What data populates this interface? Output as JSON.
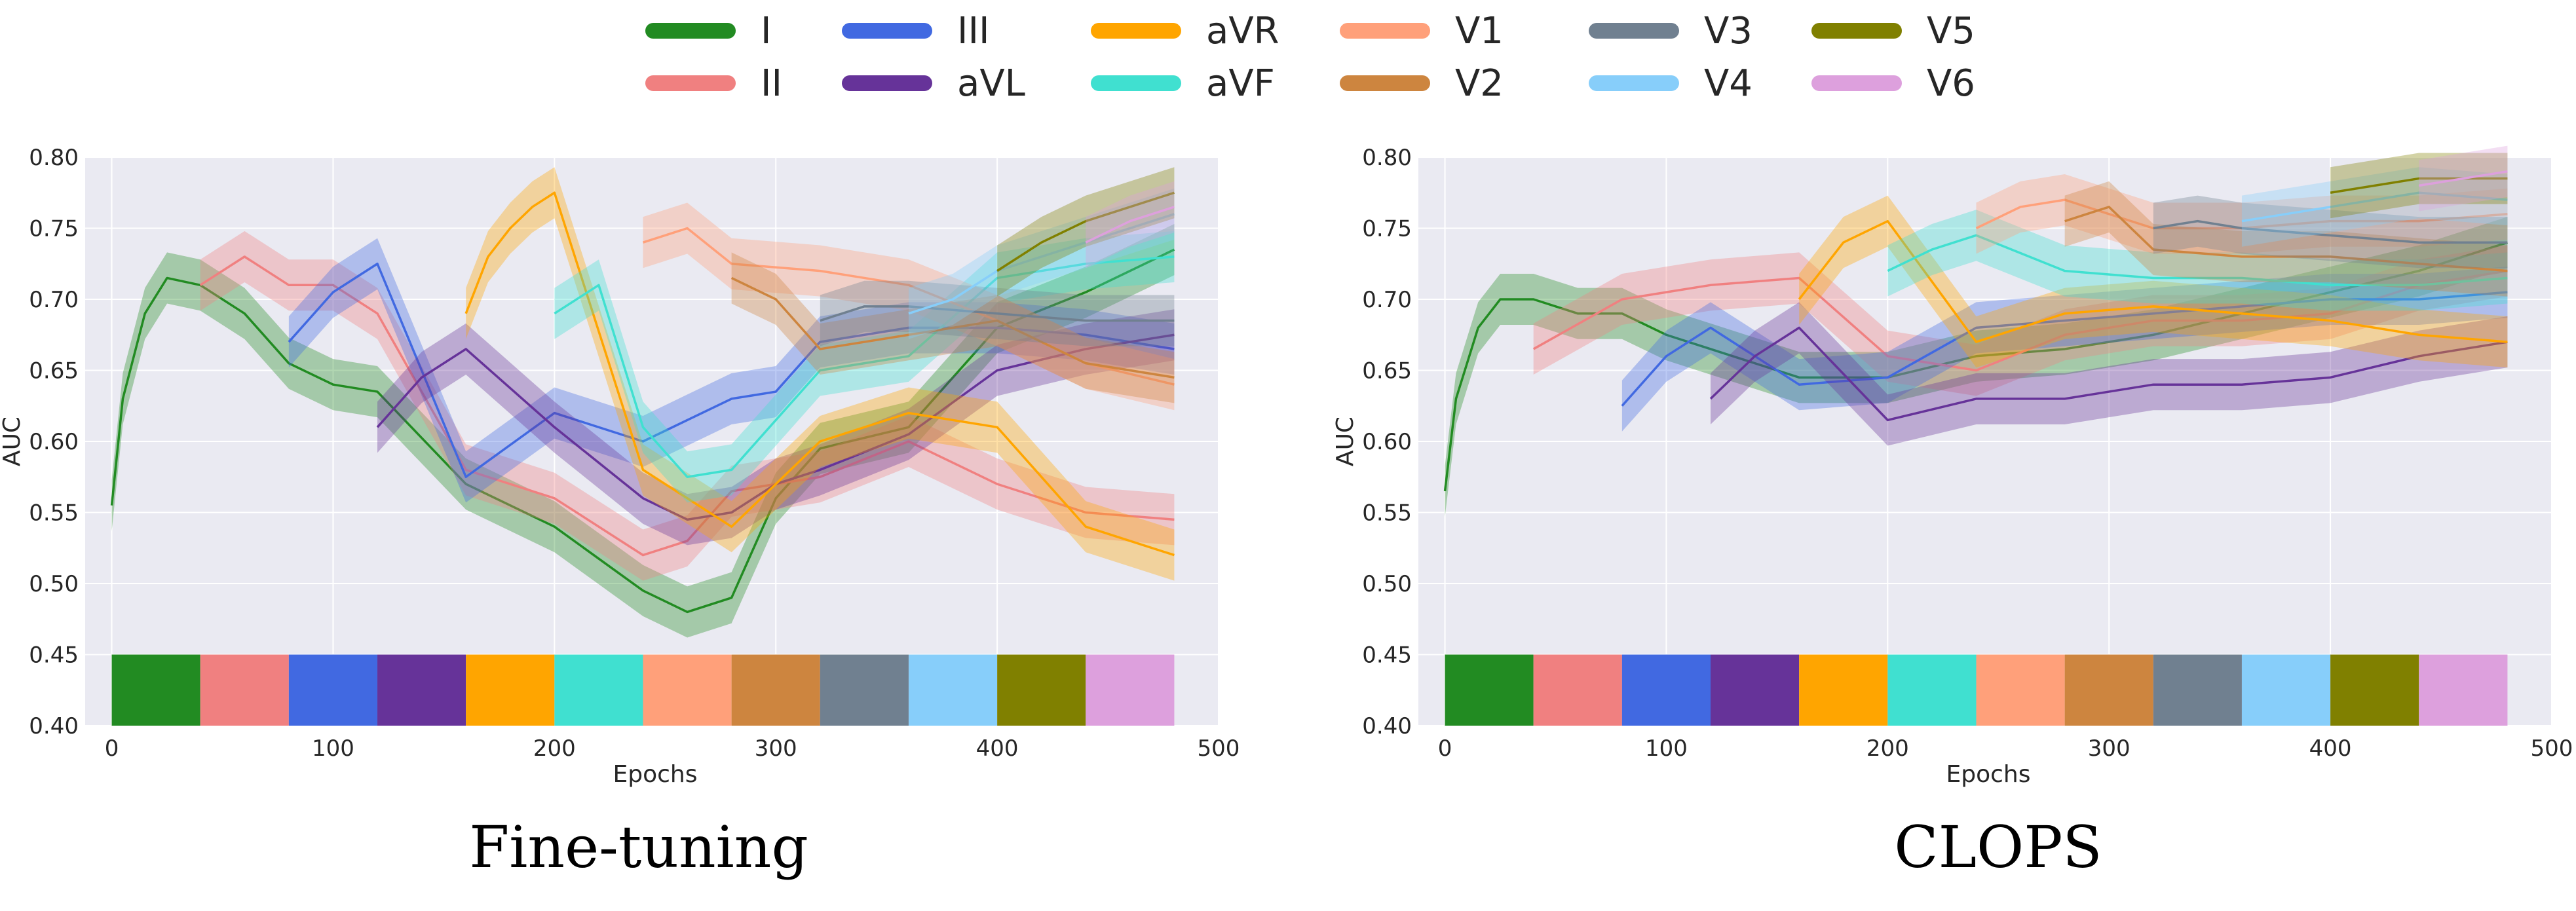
{
  "legend": [
    {
      "name": "I",
      "color": "#228b22"
    },
    {
      "name": "II",
      "color": "#f08080"
    },
    {
      "name": "III",
      "color": "#4169e1"
    },
    {
      "name": "aVL",
      "color": "#663399"
    },
    {
      "name": "aVR",
      "color": "#ffa500"
    },
    {
      "name": "aVF",
      "color": "#40e0d0"
    },
    {
      "name": "V1",
      "color": "#ffa07a"
    },
    {
      "name": "V2",
      "color": "#cd853f"
    },
    {
      "name": "V3",
      "color": "#708090"
    },
    {
      "name": "V4",
      "color": "#87cefa"
    },
    {
      "name": "V5",
      "color": "#808000"
    },
    {
      "name": "V6",
      "color": "#dda0dd"
    }
  ],
  "chart_data": [
    {
      "type": "line",
      "title": "Fine-tuning",
      "xlabel": "Epochs",
      "ylabel": "AUC",
      "xlim": [
        -12,
        500
      ],
      "ylim": [
        0.4,
        0.8
      ],
      "xticks": [
        0,
        100,
        200,
        300,
        400,
        500
      ],
      "yticks": [
        "0.40",
        "0.45",
        "0.50",
        "0.55",
        "0.60",
        "0.65",
        "0.70",
        "0.75",
        "0.80"
      ],
      "grid": true,
      "task_bar": {
        "y_range": [
          0.4,
          0.45
        ],
        "segment_epochs": 40
      },
      "series": [
        {
          "name": "I",
          "x": [
            0,
            5,
            15,
            25,
            40,
            60,
            80,
            100,
            120,
            160,
            200,
            240,
            260,
            280,
            300,
            320,
            360,
            400,
            440,
            480
          ],
          "y": [
            0.555,
            0.63,
            0.69,
            0.715,
            0.71,
            0.69,
            0.655,
            0.64,
            0.635,
            0.57,
            0.54,
            0.495,
            0.48,
            0.49,
            0.56,
            0.595,
            0.61,
            0.68,
            0.705,
            0.735
          ]
        },
        {
          "name": "II",
          "x": [
            40,
            60,
            80,
            100,
            120,
            160,
            200,
            240,
            260,
            280,
            300,
            320,
            360,
            400,
            440,
            480
          ],
          "y": [
            0.71,
            0.73,
            0.71,
            0.71,
            0.69,
            0.58,
            0.56,
            0.52,
            0.53,
            0.565,
            0.57,
            0.575,
            0.6,
            0.57,
            0.55,
            0.545
          ]
        },
        {
          "name": "III",
          "x": [
            80,
            100,
            120,
            160,
            200,
            240,
            260,
            280,
            300,
            320,
            360,
            400,
            440,
            480
          ],
          "y": [
            0.67,
            0.705,
            0.725,
            0.575,
            0.62,
            0.6,
            0.615,
            0.63,
            0.635,
            0.67,
            0.68,
            0.68,
            0.675,
            0.665
          ]
        },
        {
          "name": "aVL",
          "x": [
            120,
            140,
            160,
            200,
            240,
            260,
            280,
            300,
            320,
            360,
            400,
            440,
            480
          ],
          "y": [
            0.61,
            0.645,
            0.665,
            0.61,
            0.56,
            0.545,
            0.55,
            0.57,
            0.58,
            0.605,
            0.65,
            0.665,
            0.675
          ]
        },
        {
          "name": "aVR",
          "x": [
            160,
            170,
            180,
            190,
            200,
            240,
            280,
            320,
            360,
            400,
            440,
            480
          ],
          "y": [
            0.69,
            0.73,
            0.75,
            0.765,
            0.775,
            0.58,
            0.54,
            0.6,
            0.62,
            0.61,
            0.54,
            0.52
          ]
        },
        {
          "name": "aVF",
          "x": [
            200,
            220,
            240,
            260,
            280,
            320,
            360,
            400,
            440,
            480
          ],
          "y": [
            0.69,
            0.71,
            0.61,
            0.575,
            0.58,
            0.65,
            0.66,
            0.715,
            0.725,
            0.73
          ]
        },
        {
          "name": "V1",
          "x": [
            240,
            260,
            280,
            320,
            360,
            400,
            440,
            480
          ],
          "y": [
            0.74,
            0.75,
            0.725,
            0.72,
            0.71,
            0.685,
            0.655,
            0.64
          ]
        },
        {
          "name": "V2",
          "x": [
            280,
            300,
            320,
            360,
            400,
            440,
            480
          ],
          "y": [
            0.715,
            0.7,
            0.665,
            0.675,
            0.685,
            0.655,
            0.645
          ]
        },
        {
          "name": "V3",
          "x": [
            320,
            340,
            360,
            400,
            440,
            480
          ],
          "y": [
            0.685,
            0.695,
            0.695,
            0.69,
            0.685,
            0.685
          ]
        },
        {
          "name": "V4",
          "x": [
            360,
            380,
            400,
            440,
            480
          ],
          "y": [
            0.69,
            0.7,
            0.72,
            0.74,
            0.76
          ]
        },
        {
          "name": "V5",
          "x": [
            400,
            420,
            440,
            460,
            480
          ],
          "y": [
            0.72,
            0.74,
            0.755,
            0.765,
            0.775
          ]
        },
        {
          "name": "V6",
          "x": [
            440,
            460,
            480
          ],
          "y": [
            0.74,
            0.755,
            0.765
          ]
        }
      ]
    },
    {
      "type": "line",
      "title": "CLOPS",
      "xlabel": "Epochs",
      "ylabel": "AUC",
      "xlim": [
        -12,
        500
      ],
      "ylim": [
        0.4,
        0.8
      ],
      "xticks": [
        0,
        100,
        200,
        300,
        400,
        500
      ],
      "yticks": [
        "0.40",
        "0.45",
        "0.50",
        "0.55",
        "0.60",
        "0.65",
        "0.70",
        "0.75",
        "0.80"
      ],
      "grid": true,
      "task_bar": {
        "y_range": [
          0.4,
          0.45
        ],
        "segment_epochs": 40
      },
      "series": [
        {
          "name": "I",
          "x": [
            0,
            5,
            15,
            25,
            40,
            60,
            80,
            100,
            120,
            160,
            200,
            240,
            280,
            320,
            360,
            400,
            440,
            480
          ],
          "y": [
            0.565,
            0.63,
            0.68,
            0.7,
            0.7,
            0.69,
            0.69,
            0.675,
            0.665,
            0.645,
            0.645,
            0.66,
            0.665,
            0.675,
            0.69,
            0.705,
            0.72,
            0.74
          ]
        },
        {
          "name": "II",
          "x": [
            40,
            80,
            120,
            160,
            200,
            240,
            280,
            320,
            360,
            400,
            440,
            480
          ],
          "y": [
            0.665,
            0.7,
            0.71,
            0.715,
            0.66,
            0.65,
            0.675,
            0.685,
            0.685,
            0.69,
            0.71,
            0.72
          ]
        },
        {
          "name": "III",
          "x": [
            80,
            100,
            120,
            160,
            200,
            240,
            280,
            320,
            360,
            400,
            440,
            480
          ],
          "y": [
            0.625,
            0.66,
            0.68,
            0.64,
            0.645,
            0.68,
            0.685,
            0.69,
            0.695,
            0.7,
            0.7,
            0.705
          ]
        },
        {
          "name": "aVL",
          "x": [
            120,
            140,
            160,
            200,
            240,
            280,
            320,
            360,
            400,
            440,
            480
          ],
          "y": [
            0.63,
            0.66,
            0.68,
            0.615,
            0.63,
            0.63,
            0.64,
            0.64,
            0.645,
            0.66,
            0.67
          ]
        },
        {
          "name": "aVR",
          "x": [
            160,
            170,
            180,
            200,
            240,
            280,
            320,
            360,
            400,
            440,
            480
          ],
          "y": [
            0.7,
            0.72,
            0.74,
            0.755,
            0.67,
            0.69,
            0.695,
            0.69,
            0.685,
            0.675,
            0.67
          ]
        },
        {
          "name": "aVF",
          "x": [
            200,
            220,
            240,
            280,
            320,
            360,
            400,
            440,
            480
          ],
          "y": [
            0.72,
            0.735,
            0.745,
            0.72,
            0.715,
            0.715,
            0.71,
            0.71,
            0.715
          ]
        },
        {
          "name": "V1",
          "x": [
            240,
            260,
            280,
            320,
            360,
            400,
            440,
            480
          ],
          "y": [
            0.75,
            0.765,
            0.77,
            0.75,
            0.75,
            0.755,
            0.755,
            0.76
          ]
        },
        {
          "name": "V2",
          "x": [
            280,
            300,
            320,
            360,
            400,
            440,
            480
          ],
          "y": [
            0.755,
            0.765,
            0.735,
            0.73,
            0.73,
            0.725,
            0.72
          ]
        },
        {
          "name": "V3",
          "x": [
            320,
            340,
            360,
            400,
            440,
            480
          ],
          "y": [
            0.75,
            0.755,
            0.75,
            0.745,
            0.74,
            0.74
          ]
        },
        {
          "name": "V4",
          "x": [
            360,
            380,
            400,
            440,
            480
          ],
          "y": [
            0.755,
            0.76,
            0.765,
            0.775,
            0.77
          ]
        },
        {
          "name": "V5",
          "x": [
            400,
            420,
            440,
            460,
            480
          ],
          "y": [
            0.775,
            0.78,
            0.785,
            0.785,
            0.785
          ]
        },
        {
          "name": "V6",
          "x": [
            440,
            460,
            480
          ],
          "y": [
            0.78,
            0.785,
            0.79
          ]
        }
      ]
    }
  ]
}
